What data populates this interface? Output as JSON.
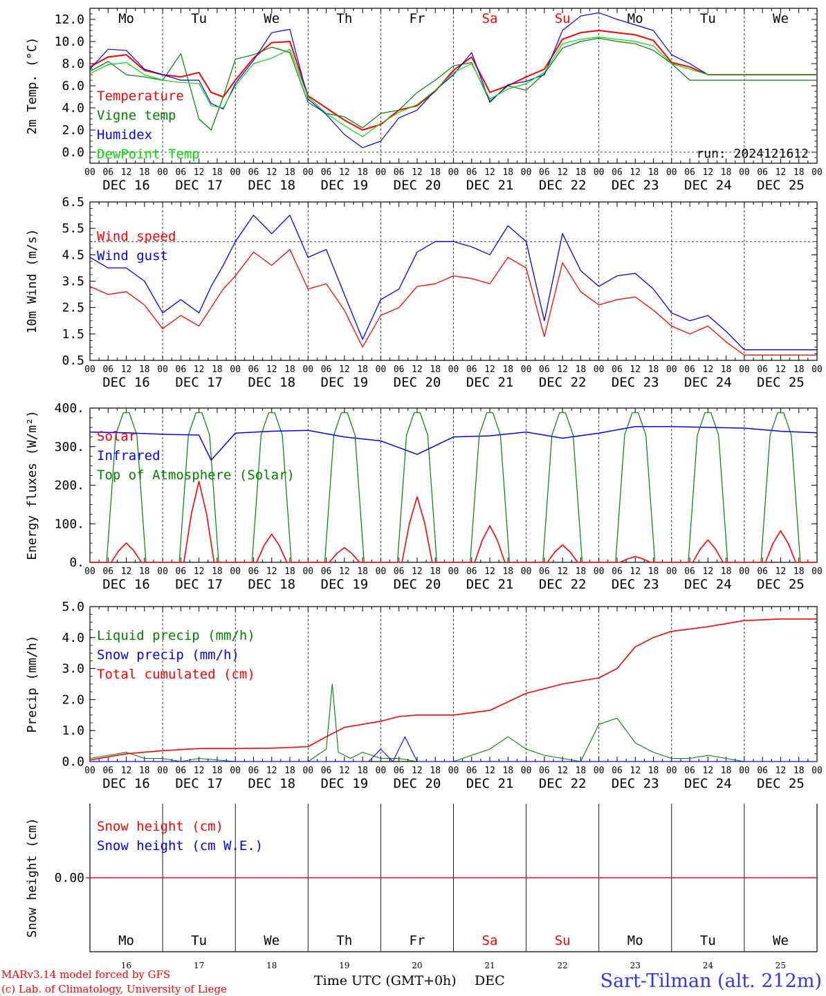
{
  "run_label": "run: 2024121612",
  "days": [
    {
      "abbr": "Mo",
      "date": "DEC 16",
      "num": "16",
      "weekend": false
    },
    {
      "abbr": "Tu",
      "date": "DEC 17",
      "num": "17",
      "weekend": false
    },
    {
      "abbr": "We",
      "date": "DEC 18",
      "num": "18",
      "weekend": false
    },
    {
      "abbr": "Th",
      "date": "DEC 19",
      "num": "19",
      "weekend": false
    },
    {
      "abbr": "Fr",
      "date": "DEC 20",
      "num": "20",
      "weekend": false
    },
    {
      "abbr": "Sa",
      "date": "DEC 21",
      "num": "21",
      "weekend": true
    },
    {
      "abbr": "Su",
      "date": "DEC 22",
      "num": "22",
      "weekend": true
    },
    {
      "abbr": "Mo",
      "date": "DEC 23",
      "num": "23",
      "weekend": false
    },
    {
      "abbr": "Tu",
      "date": "DEC 24",
      "num": "24",
      "weekend": false
    },
    {
      "abbr": "We",
      "date": "DEC 25",
      "num": "25",
      "weekend": false
    }
  ],
  "hour_ticks": [
    "00",
    "06",
    "12",
    "18"
  ],
  "final_hour": "00",
  "footer": {
    "credit_line1": "MARv3.14 model forced by GFS",
    "credit_line2": "(c) Lab. of Climatology, University of Liege",
    "time_label": "Time UTC (GMT+0h)",
    "month_label": "DEC",
    "station": "Sart-Tilman (alt. 212m)"
  },
  "colors": {
    "red": "#ff0000",
    "green": "#008000",
    "blue": "#0000ff",
    "lightgreen": "#00dd00",
    "text": "#000000",
    "weekend": "#ff0000",
    "station": "#3333ff"
  },
  "chart_data": [
    {
      "type": "line",
      "panel": "temperature",
      "ylabel": "2m Temp. (°C)",
      "ylim": [
        -1.0,
        13.0
      ],
      "yticks": [
        "0.0",
        "2.0",
        "4.0",
        "6.0",
        "8.0",
        "10.0",
        "12.0"
      ],
      "dashed_y": 0.0,
      "x_unit": "hours since DEC 16 00 UTC",
      "series": [
        {
          "name": "Temperature",
          "color": "red",
          "x": [
            0,
            6,
            12,
            18,
            24,
            30,
            36,
            40,
            44,
            48,
            54,
            60,
            66,
            72,
            78,
            84,
            90,
            96,
            102,
            108,
            114,
            120,
            126,
            132,
            138,
            144,
            150,
            156,
            162,
            168,
            174,
            180,
            186,
            192,
            198,
            204,
            210,
            216,
            222,
            228,
            234,
            240
          ],
          "y": [
            7.7,
            8.6,
            8.8,
            7.4,
            7.0,
            6.8,
            7.2,
            5.4,
            5.0,
            6.5,
            8.5,
            9.9,
            10.0,
            5.1,
            4.0,
            2.9,
            2.0,
            2.5,
            3.8,
            4.2,
            5.5,
            7.4,
            8.6,
            5.4,
            6.0,
            6.8,
            7.5,
            10.2,
            10.8,
            11.0,
            10.8,
            10.6,
            10.1,
            8.1,
            7.7,
            7.0,
            7.0,
            7.0,
            7.0,
            7.0,
            7.0,
            7.0
          ]
        },
        {
          "name": "Vigne temp",
          "color": "green",
          "x": [
            0,
            6,
            12,
            18,
            24,
            30,
            36,
            40,
            44,
            48,
            54,
            60,
            66,
            72,
            78,
            84,
            90,
            96,
            102,
            108,
            114,
            120,
            126,
            132,
            138,
            144,
            150,
            156,
            162,
            168,
            174,
            180,
            186,
            192,
            198,
            204,
            210,
            216,
            222,
            228,
            234,
            240
          ],
          "y": [
            7.3,
            8.2,
            7.0,
            6.8,
            6.5,
            8.9,
            3.0,
            2.0,
            5.0,
            8.4,
            8.8,
            9.5,
            9.0,
            4.5,
            3.5,
            3.2,
            2.2,
            3.5,
            3.8,
            5.4,
            6.5,
            7.8,
            8.1,
            4.6,
            6.0,
            5.6,
            7.1,
            9.4,
            10.0,
            10.3,
            10.0,
            9.8,
            9.2,
            8.0,
            6.5,
            6.5,
            6.5,
            6.5,
            6.5,
            6.5,
            6.5,
            6.5
          ]
        },
        {
          "name": "Humidex",
          "color": "blue",
          "x": [
            0,
            6,
            12,
            18,
            24,
            30,
            36,
            40,
            44,
            48,
            54,
            60,
            66,
            72,
            78,
            84,
            90,
            96,
            102,
            108,
            114,
            120,
            126,
            132,
            138,
            144,
            150,
            156,
            162,
            168,
            174,
            180,
            186,
            192,
            198,
            204,
            210,
            216,
            222,
            228,
            234,
            240
          ],
          "y": [
            7.5,
            9.3,
            9.2,
            7.5,
            7.0,
            6.5,
            6.5,
            4.4,
            3.9,
            6.2,
            8.3,
            10.8,
            11.1,
            4.8,
            3.4,
            1.6,
            0.4,
            1.0,
            3.1,
            3.8,
            5.6,
            7.0,
            9.0,
            4.5,
            6.1,
            6.4,
            7.0,
            11.0,
            12.3,
            12.6,
            12.0,
            11.5,
            11.0,
            8.8,
            8.0,
            7.0,
            7.0,
            7.0,
            7.0,
            7.0,
            7.0,
            7.0
          ]
        },
        {
          "name": "DewPoint Temp",
          "color": "lightgreen",
          "x": [
            0,
            6,
            12,
            18,
            24,
            30,
            36,
            40,
            44,
            48,
            54,
            60,
            66,
            72,
            78,
            84,
            90,
            96,
            102,
            108,
            114,
            120,
            126,
            132,
            138,
            144,
            150,
            156,
            162,
            168,
            174,
            180,
            186,
            192,
            198,
            204,
            210,
            216,
            222,
            228,
            234,
            240
          ],
          "y": [
            7.1,
            7.9,
            8.1,
            7.0,
            6.5,
            6.3,
            6.2,
            4.2,
            4.0,
            6.0,
            8.0,
            8.5,
            9.3,
            5.0,
            3.5,
            2.4,
            1.4,
            2.6,
            3.6,
            4.3,
            5.6,
            7.2,
            8.0,
            4.8,
            5.7,
            6.2,
            7.2,
            9.8,
            10.2,
            10.4,
            10.2,
            10.0,
            9.6,
            8.0,
            7.5,
            7.0,
            7.0,
            7.0,
            7.0,
            7.0,
            7.0,
            7.0
          ]
        }
      ]
    },
    {
      "type": "line",
      "panel": "wind",
      "ylabel": "10m Wind (m/s)",
      "ylim": [
        0.5,
        6.5
      ],
      "yticks": [
        "0.5",
        "1.5",
        "2.5",
        "3.5",
        "4.5",
        "5.5",
        "6.5"
      ],
      "dashed_y": 5.0,
      "series": [
        {
          "name": "Wind speed",
          "color": "red",
          "x": [
            0,
            6,
            12,
            18,
            24,
            30,
            36,
            40,
            44,
            48,
            54,
            60,
            66,
            72,
            78,
            84,
            90,
            96,
            102,
            108,
            114,
            120,
            126,
            132,
            138,
            144,
            150,
            156,
            162,
            168,
            174,
            180,
            186,
            192,
            198,
            204,
            210,
            216,
            222,
            228,
            234,
            240
          ],
          "y": [
            3.3,
            3.0,
            3.1,
            2.6,
            1.7,
            2.2,
            1.8,
            2.5,
            3.2,
            3.7,
            4.6,
            4.1,
            4.7,
            3.2,
            3.4,
            2.4,
            1.0,
            2.2,
            2.5,
            3.3,
            3.4,
            3.7,
            3.6,
            3.4,
            4.4,
            4.0,
            1.4,
            4.2,
            3.1,
            2.6,
            2.8,
            2.9,
            2.4,
            1.8,
            1.5,
            1.8,
            1.2,
            0.7,
            0.7,
            0.7,
            0.7,
            0.7
          ]
        },
        {
          "name": "Wind gust",
          "color": "blue",
          "x": [
            0,
            6,
            12,
            18,
            24,
            30,
            36,
            40,
            44,
            48,
            54,
            60,
            66,
            72,
            78,
            84,
            90,
            96,
            102,
            108,
            114,
            120,
            126,
            132,
            138,
            144,
            150,
            156,
            162,
            168,
            174,
            180,
            186,
            192,
            198,
            204,
            210,
            216,
            222,
            228,
            234,
            240
          ],
          "y": [
            4.4,
            4.0,
            4.0,
            3.5,
            2.3,
            2.8,
            2.3,
            3.3,
            4.1,
            5.0,
            6.0,
            5.3,
            6.0,
            4.4,
            4.7,
            3.0,
            1.3,
            2.8,
            3.2,
            4.6,
            5.0,
            5.0,
            4.8,
            4.5,
            5.6,
            5.0,
            2.0,
            5.3,
            3.9,
            3.3,
            3.7,
            3.8,
            3.2,
            2.3,
            2.0,
            2.2,
            1.6,
            0.9,
            0.9,
            0.9,
            0.9,
            0.9
          ]
        }
      ]
    },
    {
      "type": "line",
      "panel": "energy",
      "ylabel": "Energy fluxes (W/m²)",
      "ylim": [
        0,
        400
      ],
      "yticks": [
        "0.",
        "100.",
        "200.",
        "300.",
        "400."
      ],
      "solar_peaks": [
        {
          "x": 12,
          "y": 50
        },
        {
          "x": 36,
          "y": 210
        },
        {
          "x": 60,
          "y": 73
        },
        {
          "x": 84,
          "y": 38
        },
        {
          "x": 108,
          "y": 170
        },
        {
          "x": 132,
          "y": 95
        },
        {
          "x": 156,
          "y": 45
        },
        {
          "x": 180,
          "y": 15
        },
        {
          "x": 204,
          "y": 58
        },
        {
          "x": 228,
          "y": 82
        }
      ],
      "toa_peak": 388,
      "infrared": {
        "x": [
          0,
          12,
          24,
          36,
          40,
          48,
          60,
          72,
          84,
          96,
          108,
          120,
          132,
          144,
          156,
          168,
          180,
          192,
          204,
          216,
          228,
          240
        ],
        "y": [
          338,
          336,
          332,
          330,
          265,
          335,
          340,
          342,
          325,
          315,
          280,
          325,
          328,
          338,
          322,
          335,
          352,
          352,
          350,
          348,
          340,
          336
        ]
      },
      "series": [
        {
          "name": "Solar",
          "color": "red"
        },
        {
          "name": "Infrared",
          "color": "blue"
        },
        {
          "name": "Top of Atmosphere (Solar)",
          "color": "green"
        }
      ]
    },
    {
      "type": "line",
      "panel": "precip",
      "ylabel": "Precip (mm/h)",
      "ylim": [
        0,
        5.0
      ],
      "yticks": [
        "0.0",
        "1.0",
        "2.0",
        "3.0",
        "4.0",
        "5.0"
      ],
      "series": [
        {
          "name": "Liquid precip (mm/h)",
          "color": "green",
          "x": [
            0,
            6,
            12,
            18,
            24,
            30,
            36,
            48,
            60,
            72,
            78,
            80,
            82,
            86,
            90,
            96,
            102,
            108,
            120,
            126,
            132,
            138,
            144,
            150,
            156,
            162,
            168,
            174,
            180,
            186,
            192,
            198,
            204,
            210,
            216,
            222,
            228,
            234,
            240
          ],
          "y": [
            0.1,
            0.2,
            0.3,
            0.1,
            0.1,
            0.0,
            0.1,
            0.0,
            0.0,
            0.0,
            0.4,
            2.5,
            0.3,
            0.1,
            0.3,
            0.1,
            0.1,
            0.0,
            0.0,
            0.2,
            0.4,
            0.8,
            0.4,
            0.2,
            0.1,
            0.0,
            1.2,
            1.4,
            0.6,
            0.3,
            0.1,
            0.1,
            0.2,
            0.1,
            0.0,
            0.0,
            0.0,
            0.0,
            0.0
          ]
        },
        {
          "name": "Snow precip (mm/h)",
          "color": "blue",
          "x": [
            0,
            84,
            92,
            96,
            100,
            104,
            108,
            240
          ],
          "y": [
            0,
            0,
            0,
            0.4,
            0,
            0.8,
            0,
            0
          ]
        },
        {
          "name": "Total cumulated (cm)",
          "color": "red",
          "x": [
            0,
            12,
            24,
            36,
            48,
            60,
            72,
            78,
            84,
            96,
            102,
            108,
            120,
            132,
            144,
            156,
            168,
            174,
            180,
            186,
            192,
            204,
            216,
            228,
            240
          ],
          "y": [
            0.05,
            0.25,
            0.35,
            0.42,
            0.42,
            0.43,
            0.48,
            0.8,
            1.1,
            1.3,
            1.45,
            1.5,
            1.5,
            1.65,
            2.2,
            2.5,
            2.7,
            3.0,
            3.7,
            4.0,
            4.2,
            4.35,
            4.55,
            4.6,
            4.6
          ]
        }
      ]
    },
    {
      "type": "line",
      "panel": "snow",
      "ylabel": "Snow height (cm)",
      "ylim": [
        -1,
        1
      ],
      "yticks": [
        "0.00"
      ],
      "series": [
        {
          "name": "Snow height (cm)",
          "color": "red",
          "x": [
            0,
            240
          ],
          "y": [
            0,
            0
          ]
        },
        {
          "name": "Snow height (cm W.E.)",
          "color": "blue",
          "x": [
            0,
            240
          ],
          "y": [
            0,
            0
          ]
        }
      ]
    }
  ]
}
